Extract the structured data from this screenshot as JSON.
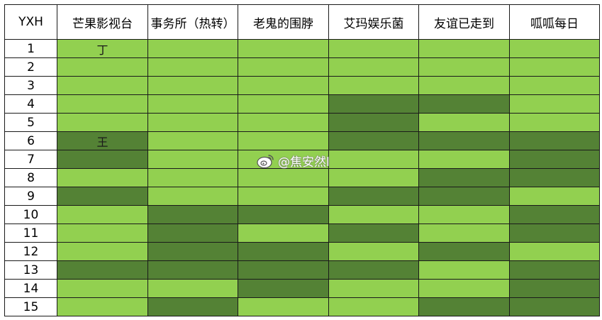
{
  "table": {
    "columns": [
      "YXH",
      "芒果影视台",
      "事务所（热转）",
      "老鬼的围脖",
      "艾玛娱乐菌",
      "友谊已走到",
      "呱呱每日"
    ],
    "rows": [
      {
        "id": "1",
        "cells": [
          {
            "text": "丁",
            "shade": "light"
          },
          {
            "text": "",
            "shade": "light"
          },
          {
            "text": "",
            "shade": "light"
          },
          {
            "text": "",
            "shade": "light"
          },
          {
            "text": "",
            "shade": "light"
          },
          {
            "text": "",
            "shade": "light"
          }
        ]
      },
      {
        "id": "2",
        "cells": [
          {
            "text": "",
            "shade": "light"
          },
          {
            "text": "",
            "shade": "light"
          },
          {
            "text": "",
            "shade": "light"
          },
          {
            "text": "",
            "shade": "light"
          },
          {
            "text": "",
            "shade": "light"
          },
          {
            "text": "",
            "shade": "light"
          }
        ]
      },
      {
        "id": "3",
        "cells": [
          {
            "text": "",
            "shade": "light"
          },
          {
            "text": "",
            "shade": "light"
          },
          {
            "text": "",
            "shade": "light"
          },
          {
            "text": "",
            "shade": "light"
          },
          {
            "text": "",
            "shade": "light"
          },
          {
            "text": "",
            "shade": "light"
          }
        ]
      },
      {
        "id": "4",
        "cells": [
          {
            "text": "",
            "shade": "light"
          },
          {
            "text": "",
            "shade": "light"
          },
          {
            "text": "",
            "shade": "light"
          },
          {
            "text": "",
            "shade": "dark"
          },
          {
            "text": "",
            "shade": "dark"
          },
          {
            "text": "",
            "shade": "light"
          }
        ]
      },
      {
        "id": "5",
        "cells": [
          {
            "text": "",
            "shade": "light"
          },
          {
            "text": "",
            "shade": "light"
          },
          {
            "text": "",
            "shade": "light"
          },
          {
            "text": "",
            "shade": "dark"
          },
          {
            "text": "",
            "shade": "light"
          },
          {
            "text": "",
            "shade": "light"
          }
        ]
      },
      {
        "id": "6",
        "cells": [
          {
            "text": "王",
            "shade": "dark"
          },
          {
            "text": "",
            "shade": "light"
          },
          {
            "text": "",
            "shade": "light"
          },
          {
            "text": "",
            "shade": "dark"
          },
          {
            "text": "",
            "shade": "dark"
          },
          {
            "text": "",
            "shade": "dark"
          }
        ]
      },
      {
        "id": "7",
        "cells": [
          {
            "text": "",
            "shade": "dark"
          },
          {
            "text": "",
            "shade": "light"
          },
          {
            "text": "",
            "shade": "light"
          },
          {
            "text": "",
            "shade": "light"
          },
          {
            "text": "",
            "shade": "light"
          },
          {
            "text": "",
            "shade": "dark"
          }
        ]
      },
      {
        "id": "8",
        "cells": [
          {
            "text": "",
            "shade": "light"
          },
          {
            "text": "",
            "shade": "light"
          },
          {
            "text": "",
            "shade": "light"
          },
          {
            "text": "",
            "shade": "light"
          },
          {
            "text": "",
            "shade": "dark"
          },
          {
            "text": "",
            "shade": "dark"
          }
        ]
      },
      {
        "id": "9",
        "cells": [
          {
            "text": "",
            "shade": "dark"
          },
          {
            "text": "",
            "shade": "light"
          },
          {
            "text": "",
            "shade": "light"
          },
          {
            "text": "",
            "shade": "dark"
          },
          {
            "text": "",
            "shade": "dark"
          },
          {
            "text": "",
            "shade": "light"
          }
        ]
      },
      {
        "id": "10",
        "cells": [
          {
            "text": "",
            "shade": "light"
          },
          {
            "text": "",
            "shade": "dark"
          },
          {
            "text": "",
            "shade": "dark"
          },
          {
            "text": "",
            "shade": "light"
          },
          {
            "text": "",
            "shade": "light"
          },
          {
            "text": "",
            "shade": "dark"
          }
        ]
      },
      {
        "id": "11",
        "cells": [
          {
            "text": "",
            "shade": "light"
          },
          {
            "text": "",
            "shade": "dark"
          },
          {
            "text": "",
            "shade": "light"
          },
          {
            "text": "",
            "shade": "dark"
          },
          {
            "text": "",
            "shade": "light"
          },
          {
            "text": "",
            "shade": "dark"
          }
        ]
      },
      {
        "id": "12",
        "cells": [
          {
            "text": "",
            "shade": "light"
          },
          {
            "text": "",
            "shade": "dark"
          },
          {
            "text": "",
            "shade": "dark"
          },
          {
            "text": "",
            "shade": "light"
          },
          {
            "text": "",
            "shade": "dark"
          },
          {
            "text": "",
            "shade": "light"
          }
        ]
      },
      {
        "id": "13",
        "cells": [
          {
            "text": "",
            "shade": "dark"
          },
          {
            "text": "",
            "shade": "dark"
          },
          {
            "text": "",
            "shade": "dark"
          },
          {
            "text": "",
            "shade": "dark"
          },
          {
            "text": "",
            "shade": "light"
          },
          {
            "text": "",
            "shade": "dark"
          }
        ]
      },
      {
        "id": "14",
        "cells": [
          {
            "text": "",
            "shade": "light"
          },
          {
            "text": "",
            "shade": "light"
          },
          {
            "text": "",
            "shade": "dark"
          },
          {
            "text": "",
            "shade": "light"
          },
          {
            "text": "",
            "shade": "light"
          },
          {
            "text": "",
            "shade": "dark"
          }
        ]
      },
      {
        "id": "15",
        "cells": [
          {
            "text": "",
            "shade": "light"
          },
          {
            "text": "",
            "shade": "dark"
          },
          {
            "text": "",
            "shade": "light"
          },
          {
            "text": "",
            "shade": "light"
          },
          {
            "text": "",
            "shade": "dark"
          },
          {
            "text": "",
            "shade": "dark"
          }
        ]
      }
    ]
  },
  "watermark": {
    "text": "@焦安然l",
    "icon": "weibo-icon"
  },
  "colors": {
    "light_cell": "#92d050",
    "dark_cell": "#548235",
    "border": "#1a1a1a",
    "header_bg": "#ffffff"
  }
}
